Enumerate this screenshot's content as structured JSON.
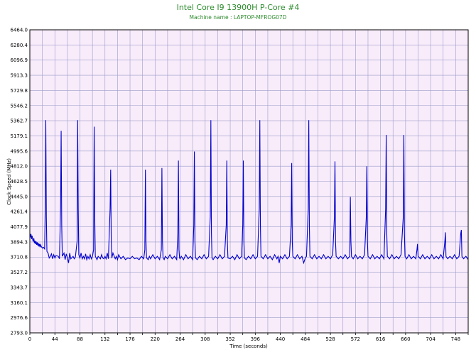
{
  "header": {
    "title": "Intel Core I9 13900H P-Core #4",
    "subtitle": "Machine name : LAPTOP-MFROG07D"
  },
  "colors": {
    "title": "#2e8b2e",
    "subtitle": "#2e8b2e",
    "plot_bg": "#f8ecfb",
    "grid": "#9b9bc8",
    "line": "#0000cc",
    "axis": "#000000"
  },
  "chart_data": {
    "type": "line",
    "title": "Intel Core I9 13900H P-Core #4",
    "subtitle": "Machine name : LAPTOP-MFROG07D",
    "xlabel": "Time (seconds)",
    "ylabel": "Clock Speed (MHz)",
    "xlim": [
      0,
      770
    ],
    "ylim": [
      2793.0,
      6464.0
    ],
    "grid": true,
    "legend": "none",
    "x_ticks": [
      0,
      44,
      88,
      132,
      176,
      220,
      264,
      308,
      352,
      396,
      440,
      484,
      528,
      572,
      616,
      660,
      704,
      748
    ],
    "y_ticks": [
      "2793.0",
      "2976.6",
      "3160.1",
      "3343.7",
      "3527.2",
      "3710.8",
      "3894.3",
      "4077.9",
      "4261.4",
      "4445.0",
      "4628.5",
      "4812.0",
      "4995.6",
      "5179.1",
      "5362.7",
      "5546.2",
      "5729.8",
      "5913.3",
      "6096.9",
      "6280.4",
      "6464.0"
    ],
    "baseline": 3690,
    "series": [
      {
        "name": "",
        "points": [
          [
            0,
            4000
          ],
          [
            1,
            3950
          ],
          [
            2,
            3990
          ],
          [
            3,
            3930
          ],
          [
            4,
            3970
          ],
          [
            5,
            3920
          ],
          [
            6,
            3900
          ],
          [
            7,
            3940
          ],
          [
            8,
            3880
          ],
          [
            9,
            3910
          ],
          [
            10,
            3870
          ],
          [
            11,
            3900
          ],
          [
            12,
            3860
          ],
          [
            13,
            3890
          ],
          [
            14,
            3850
          ],
          [
            15,
            3880
          ],
          [
            16,
            3840
          ],
          [
            17,
            3870
          ],
          [
            18,
            3830
          ],
          [
            19,
            3860
          ],
          [
            20,
            3840
          ],
          [
            22,
            3820
          ],
          [
            24,
            3830
          ],
          [
            26,
            3810
          ],
          [
            27,
            4300
          ],
          [
            28,
            5370
          ],
          [
            29,
            4200
          ],
          [
            30,
            3780
          ],
          [
            32,
            3760
          ],
          [
            34,
            3700
          ],
          [
            36,
            3720
          ],
          [
            38,
            3750
          ],
          [
            40,
            3690
          ],
          [
            42,
            3740
          ],
          [
            44,
            3700
          ],
          [
            46,
            3730
          ],
          [
            50,
            3720
          ],
          [
            52,
            3690
          ],
          [
            54,
            4300
          ],
          [
            55,
            5240
          ],
          [
            56,
            4100
          ],
          [
            57,
            3720
          ],
          [
            60,
            3760
          ],
          [
            62,
            3680
          ],
          [
            64,
            3750
          ],
          [
            66,
            3700
          ],
          [
            68,
            3640
          ],
          [
            70,
            3760
          ],
          [
            72,
            3690
          ],
          [
            76,
            3720
          ],
          [
            78,
            3690
          ],
          [
            80,
            3710
          ],
          [
            83,
            3900
          ],
          [
            84,
            5370
          ],
          [
            85,
            4300
          ],
          [
            86,
            3740
          ],
          [
            88,
            3700
          ],
          [
            90,
            3760
          ],
          [
            92,
            3690
          ],
          [
            94,
            3720
          ],
          [
            96,
            3690
          ],
          [
            98,
            3750
          ],
          [
            100,
            3680
          ],
          [
            102,
            3720
          ],
          [
            104,
            3690
          ],
          [
            106,
            3740
          ],
          [
            108,
            3690
          ],
          [
            110,
            3720
          ],
          [
            112,
            3800
          ],
          [
            113,
            5290
          ],
          [
            114,
            4200
          ],
          [
            115,
            3720
          ],
          [
            118,
            3680
          ],
          [
            120,
            3720
          ],
          [
            124,
            3690
          ],
          [
            126,
            3740
          ],
          [
            128,
            3700
          ],
          [
            130,
            3690
          ],
          [
            132,
            3720
          ],
          [
            134,
            3690
          ],
          [
            136,
            3760
          ],
          [
            138,
            3690
          ],
          [
            141,
            4300
          ],
          [
            142,
            4770
          ],
          [
            143,
            3900
          ],
          [
            144,
            3700
          ],
          [
            146,
            3760
          ],
          [
            150,
            3690
          ],
          [
            152,
            3720
          ],
          [
            154,
            3680
          ],
          [
            156,
            3740
          ],
          [
            160,
            3690
          ],
          [
            164,
            3720
          ],
          [
            168,
            3680
          ],
          [
            172,
            3700
          ],
          [
            176,
            3690
          ],
          [
            180,
            3720
          ],
          [
            184,
            3690
          ],
          [
            188,
            3700
          ],
          [
            192,
            3680
          ],
          [
            196,
            3720
          ],
          [
            200,
            3690
          ],
          [
            202,
            3800
          ],
          [
            203,
            4770
          ],
          [
            204,
            3900
          ],
          [
            205,
            3700
          ],
          [
            208,
            3680
          ],
          [
            210,
            3720
          ],
          [
            212,
            3690
          ],
          [
            216,
            3740
          ],
          [
            220,
            3690
          ],
          [
            224,
            3720
          ],
          [
            228,
            3680
          ],
          [
            231,
            3800
          ],
          [
            232,
            4790
          ],
          [
            233,
            3900
          ],
          [
            234,
            3700
          ],
          [
            236,
            3680
          ],
          [
            238,
            3720
          ],
          [
            242,
            3690
          ],
          [
            246,
            3740
          ],
          [
            250,
            3690
          ],
          [
            254,
            3720
          ],
          [
            258,
            3680
          ],
          [
            260,
            4000
          ],
          [
            261,
            4880
          ],
          [
            262,
            3800
          ],
          [
            263,
            3700
          ],
          [
            264,
            3690
          ],
          [
            266,
            3720
          ],
          [
            270,
            3680
          ],
          [
            274,
            3740
          ],
          [
            278,
            3690
          ],
          [
            282,
            3720
          ],
          [
            286,
            3680
          ],
          [
            288,
            4100
          ],
          [
            289,
            4990
          ],
          [
            290,
            3900
          ],
          [
            291,
            3700
          ],
          [
            294,
            3680
          ],
          [
            298,
            3720
          ],
          [
            302,
            3690
          ],
          [
            306,
            3740
          ],
          [
            310,
            3690
          ],
          [
            314,
            3720
          ],
          [
            317,
            4200
          ],
          [
            318,
            5370
          ],
          [
            319,
            4000
          ],
          [
            320,
            3700
          ],
          [
            322,
            3680
          ],
          [
            326,
            3720
          ],
          [
            330,
            3690
          ],
          [
            334,
            3740
          ],
          [
            338,
            3690
          ],
          [
            342,
            3720
          ],
          [
            345,
            4100
          ],
          [
            346,
            4880
          ],
          [
            347,
            3900
          ],
          [
            348,
            3700
          ],
          [
            352,
            3690
          ],
          [
            356,
            3720
          ],
          [
            360,
            3680
          ],
          [
            364,
            3740
          ],
          [
            368,
            3690
          ],
          [
            372,
            3720
          ],
          [
            374,
            4100
          ],
          [
            375,
            4880
          ],
          [
            376,
            3900
          ],
          [
            377,
            3700
          ],
          [
            380,
            3680
          ],
          [
            384,
            3720
          ],
          [
            388,
            3690
          ],
          [
            392,
            3740
          ],
          [
            396,
            3690
          ],
          [
            400,
            3720
          ],
          [
            403,
            4300
          ],
          [
            404,
            5370
          ],
          [
            405,
            4100
          ],
          [
            406,
            3720
          ],
          [
            410,
            3690
          ],
          [
            414,
            3740
          ],
          [
            418,
            3690
          ],
          [
            422,
            3720
          ],
          [
            426,
            3680
          ],
          [
            430,
            3740
          ],
          [
            434,
            3690
          ],
          [
            436,
            3720
          ],
          [
            438,
            3640
          ],
          [
            440,
            3720
          ],
          [
            444,
            3690
          ],
          [
            448,
            3740
          ],
          [
            452,
            3690
          ],
          [
            456,
            3720
          ],
          [
            459,
            4100
          ],
          [
            460,
            4850
          ],
          [
            461,
            3900
          ],
          [
            462,
            3720
          ],
          [
            466,
            3690
          ],
          [
            470,
            3740
          ],
          [
            474,
            3690
          ],
          [
            478,
            3720
          ],
          [
            481,
            3640
          ],
          [
            484,
            3700
          ],
          [
            486,
            3720
          ],
          [
            489,
            4300
          ],
          [
            490,
            5370
          ],
          [
            491,
            4100
          ],
          [
            492,
            3720
          ],
          [
            496,
            3690
          ],
          [
            500,
            3740
          ],
          [
            504,
            3690
          ],
          [
            508,
            3720
          ],
          [
            512,
            3690
          ],
          [
            516,
            3740
          ],
          [
            520,
            3690
          ],
          [
            524,
            3720
          ],
          [
            528,
            3690
          ],
          [
            532,
            3740
          ],
          [
            535,
            4200
          ],
          [
            536,
            4870
          ],
          [
            537,
            3900
          ],
          [
            538,
            3720
          ],
          [
            542,
            3690
          ],
          [
            546,
            3720
          ],
          [
            550,
            3690
          ],
          [
            554,
            3740
          ],
          [
            558,
            3690
          ],
          [
            562,
            3720
          ],
          [
            563,
            4440
          ],
          [
            564,
            3900
          ],
          [
            565,
            3720
          ],
          [
            568,
            3690
          ],
          [
            572,
            3740
          ],
          [
            576,
            3690
          ],
          [
            580,
            3720
          ],
          [
            584,
            3690
          ],
          [
            588,
            3740
          ],
          [
            591,
            4200
          ],
          [
            592,
            4810
          ],
          [
            593,
            3900
          ],
          [
            594,
            3720
          ],
          [
            598,
            3690
          ],
          [
            602,
            3740
          ],
          [
            606,
            3690
          ],
          [
            610,
            3720
          ],
          [
            614,
            3690
          ],
          [
            618,
            3740
          ],
          [
            622,
            3690
          ],
          [
            625,
            4300
          ],
          [
            626,
            5190
          ],
          [
            627,
            4000
          ],
          [
            628,
            3720
          ],
          [
            632,
            3690
          ],
          [
            636,
            3740
          ],
          [
            640,
            3690
          ],
          [
            644,
            3720
          ],
          [
            648,
            3690
          ],
          [
            652,
            3740
          ],
          [
            656,
            4200
          ],
          [
            657,
            5190
          ],
          [
            658,
            4000
          ],
          [
            659,
            3720
          ],
          [
            662,
            3690
          ],
          [
            666,
            3740
          ],
          [
            670,
            3690
          ],
          [
            674,
            3720
          ],
          [
            678,
            3690
          ],
          [
            680,
            3800
          ],
          [
            681,
            3870
          ],
          [
            682,
            3720
          ],
          [
            686,
            3690
          ],
          [
            690,
            3740
          ],
          [
            694,
            3690
          ],
          [
            698,
            3720
          ],
          [
            702,
            3690
          ],
          [
            706,
            3740
          ],
          [
            710,
            3690
          ],
          [
            714,
            3720
          ],
          [
            718,
            3690
          ],
          [
            722,
            3740
          ],
          [
            726,
            3690
          ],
          [
            729,
            3900
          ],
          [
            730,
            4010
          ],
          [
            731,
            3720
          ],
          [
            734,
            3690
          ],
          [
            738,
            3720
          ],
          [
            742,
            3690
          ],
          [
            746,
            3740
          ],
          [
            750,
            3690
          ],
          [
            754,
            3720
          ],
          [
            757,
            4000
          ],
          [
            758,
            4040
          ],
          [
            759,
            3720
          ],
          [
            762,
            3690
          ],
          [
            766,
            3720
          ],
          [
            770,
            3680
          ]
        ]
      }
    ]
  }
}
